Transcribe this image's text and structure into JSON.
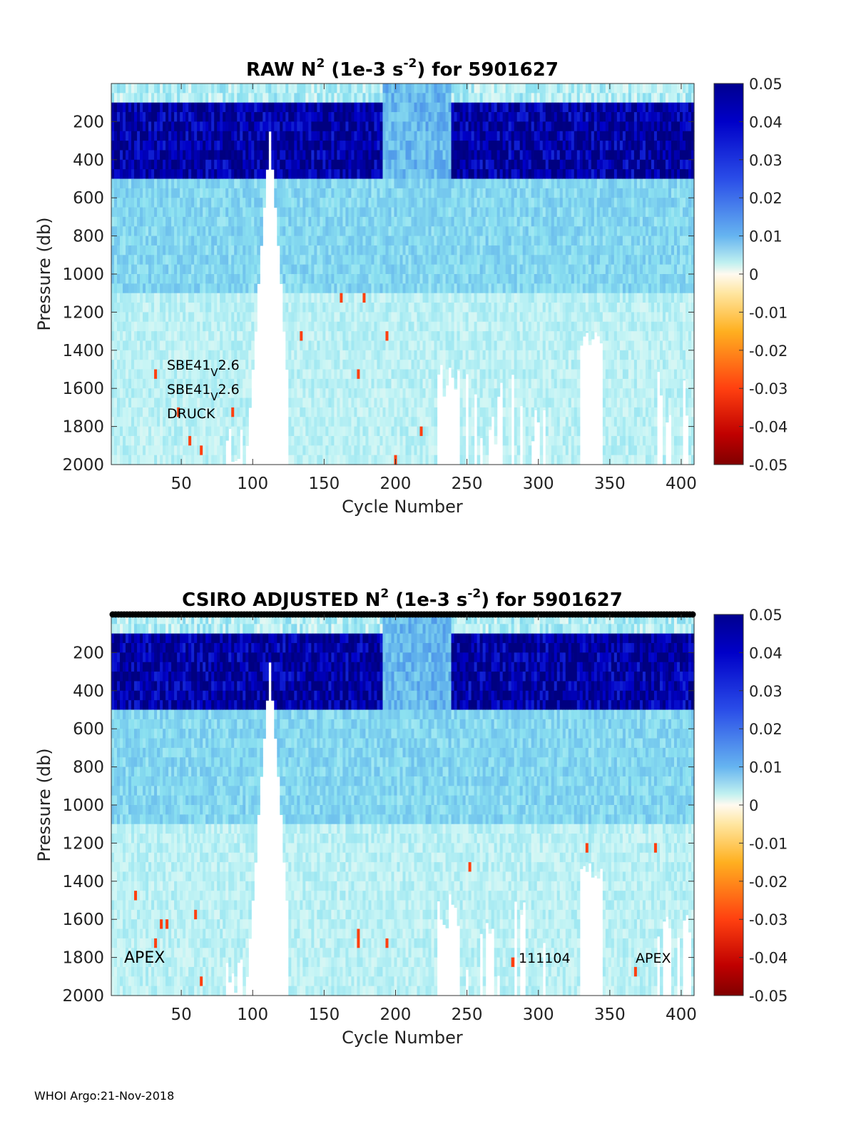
{
  "footer": "WHOI Argo:21-Nov-2018",
  "chart_data": [
    {
      "type": "heatmap",
      "title": {
        "prefix": "RAW N",
        "sup1": "2",
        "mid": " (1e-3 s",
        "sup2": "-2",
        "suffix": ") for 5901627"
      },
      "xlabel": "Cycle Number",
      "ylabel": "Pressure (db)",
      "xlim": [
        1,
        409
      ],
      "ylim": [
        2000,
        0
      ],
      "xticks": [
        50,
        100,
        150,
        200,
        250,
        300,
        350,
        400
      ],
      "yticks": [
        200,
        400,
        600,
        800,
        1000,
        1200,
        1400,
        1600,
        1800,
        2000
      ],
      "colorbar": {
        "range": [
          -0.05,
          0.05
        ],
        "ticks": [
          0.05,
          0.04,
          0.03,
          0.02,
          0.01,
          0,
          -0.01,
          -0.02,
          -0.03,
          -0.04,
          -0.05
        ],
        "colormap": "jet-white-centered"
      },
      "annotations": [
        {
          "text": "SBE41",
          "sub": "V",
          "tail": "2.6"
        },
        {
          "text": "SBE41",
          "sub": "V",
          "tail": "2.6"
        },
        {
          "text": "DRUCK",
          "sub": "",
          "tail": ""
        }
      ],
      "summary": {
        "upper_ocean_0_500db": 0.045,
        "mid_500_1100db": 0.012,
        "deep_1100_2000db": 0.006,
        "no_data_cycle_range": [
          92,
          126
        ]
      }
    },
    {
      "type": "heatmap",
      "title": {
        "prefix": "CSIRO  ADJUSTED N",
        "sup1": "2",
        "mid": " (1e-3 s",
        "sup2": "-2",
        "suffix": ") for 5901627"
      },
      "xlabel": "Cycle Number",
      "ylabel": "Pressure (db)",
      "xlim": [
        1,
        409
      ],
      "ylim": [
        2000,
        0
      ],
      "xticks": [
        50,
        100,
        150,
        200,
        250,
        300,
        350,
        400
      ],
      "yticks": [
        200,
        400,
        600,
        800,
        1000,
        1200,
        1400,
        1600,
        1800,
        2000
      ],
      "colorbar": {
        "range": [
          -0.05,
          0.05
        ],
        "ticks": [
          0.05,
          0.04,
          0.03,
          0.02,
          0.01,
          0,
          -0.01,
          -0.02,
          -0.03,
          -0.04,
          -0.05
        ],
        "colormap": "jet-white-centered"
      },
      "annotations": [
        {
          "text": "APEX"
        },
        {
          "text": "111104"
        },
        {
          "text": "APEX"
        }
      ],
      "summary": {
        "upper_ocean_0_500db": 0.045,
        "mid_500_1100db": 0.012,
        "deep_1100_2000db": 0.006,
        "no_data_cycle_range": [
          92,
          126
        ]
      }
    }
  ]
}
